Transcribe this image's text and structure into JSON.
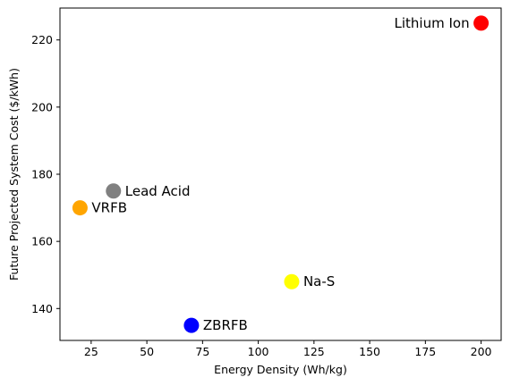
{
  "chart_data": {
    "type": "scatter",
    "title": "",
    "xlabel": "Energy Density (Wh/kg)",
    "ylabel": "Future Projected System Cost ($/kWh)",
    "xlim": [
      11,
      209
    ],
    "ylim": [
      130.5,
      229.5
    ],
    "xticks": [
      25,
      50,
      75,
      100,
      125,
      150,
      175,
      200
    ],
    "yticks": [
      140,
      160,
      180,
      200,
      220
    ],
    "grid": false,
    "points": [
      {
        "label": "Lithium Ion",
        "x": 200,
        "y": 225,
        "color": "#ff0000",
        "label_side": "left"
      },
      {
        "label": "Lead Acid",
        "x": 35,
        "y": 175,
        "color": "#808080",
        "label_side": "right"
      },
      {
        "label": "VRFB",
        "x": 20,
        "y": 170,
        "color": "#ffa500",
        "label_side": "right"
      },
      {
        "label": "Na-S",
        "x": 115,
        "y": 148,
        "color": "#ffff00",
        "label_side": "right"
      },
      {
        "label": "ZBRFB",
        "x": 70,
        "y": 135,
        "color": "#0000ff",
        "label_side": "right"
      }
    ]
  }
}
